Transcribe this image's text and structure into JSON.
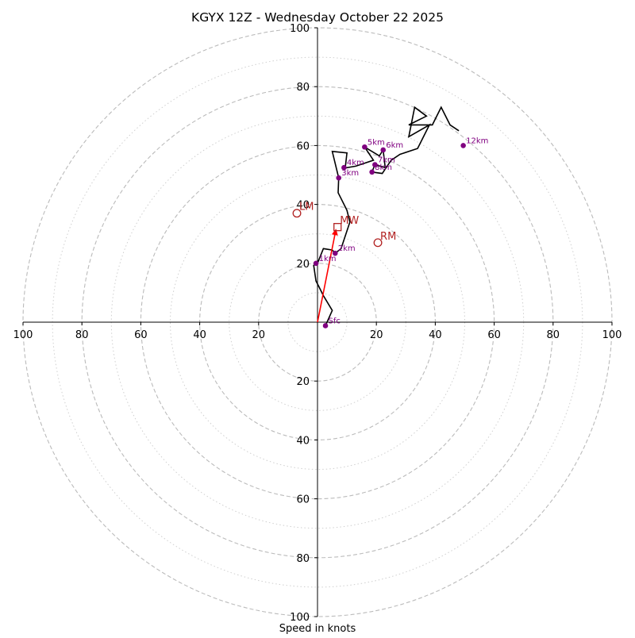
{
  "chart_data": {
    "type": "hodograph",
    "title": "KGYX 12Z - Wednesday October 22 2025",
    "xlabel": "Speed in knots",
    "range": [
      -100,
      100
    ],
    "rings": {
      "major": [
        20,
        40,
        60,
        80,
        100
      ],
      "minor": [
        10,
        30,
        50,
        70,
        90
      ]
    },
    "x_ticks": [
      {
        "value": -100,
        "label": "100"
      },
      {
        "value": -80,
        "label": "80"
      },
      {
        "value": -60,
        "label": "60"
      },
      {
        "value": -40,
        "label": "40"
      },
      {
        "value": -20,
        "label": "20"
      },
      {
        "value": 20,
        "label": "20"
      },
      {
        "value": 40,
        "label": "40"
      },
      {
        "value": 60,
        "label": "60"
      },
      {
        "value": 80,
        "label": "80"
      },
      {
        "value": 100,
        "label": "100"
      }
    ],
    "y_ticks": [
      {
        "value": 100,
        "label": "100"
      },
      {
        "value": 80,
        "label": "80"
      },
      {
        "value": 60,
        "label": "60"
      },
      {
        "value": 40,
        "label": "40"
      },
      {
        "value": 20,
        "label": "20"
      },
      {
        "value": -20,
        "label": "20"
      },
      {
        "value": -40,
        "label": "40"
      },
      {
        "value": -60,
        "label": "60"
      },
      {
        "value": -80,
        "label": "80"
      },
      {
        "value": -100,
        "label": "100"
      }
    ],
    "trace": [
      [
        2.7,
        -1.2
      ],
      [
        5,
        4
      ],
      [
        2,
        9
      ],
      [
        0.5,
        12
      ],
      [
        -0.5,
        14
      ],
      [
        -1.3,
        19.3
      ],
      [
        0,
        20
      ],
      [
        2,
        25
      ],
      [
        5,
        24.5
      ],
      [
        6,
        23.4
      ],
      [
        8,
        25
      ],
      [
        11,
        34
      ],
      [
        10,
        38
      ],
      [
        8,
        42
      ],
      [
        7,
        44
      ],
      [
        7.2,
        49
      ],
      [
        5,
        58
      ],
      [
        10,
        57.5
      ],
      [
        9.5,
        53
      ],
      [
        8.8,
        52.3
      ],
      [
        13,
        53
      ],
      [
        19,
        55
      ],
      [
        16,
        59.5
      ],
      [
        21,
        56.5
      ],
      [
        22.3,
        58.5
      ],
      [
        23,
        52.5
      ],
      [
        19.5,
        53.5
      ],
      [
        18.5,
        51
      ],
      [
        22,
        50.5
      ],
      [
        23,
        52
      ],
      [
        25,
        55
      ],
      [
        28,
        57
      ],
      [
        34,
        59
      ],
      [
        38,
        67
      ],
      [
        31,
        63
      ],
      [
        33,
        73
      ],
      [
        37,
        70
      ],
      [
        31,
        67
      ],
      [
        39,
        67
      ],
      [
        42,
        73
      ],
      [
        45,
        67
      ],
      [
        48,
        65
      ]
    ],
    "levels": [
      {
        "label": "Sfc",
        "u": 2.7,
        "v": -1.2
      },
      {
        "label": "1km",
        "u": -0.5,
        "v": 20
      },
      {
        "label": "2km",
        "u": 6,
        "v": 23.4
      },
      {
        "label": "3km",
        "u": 7.2,
        "v": 49
      },
      {
        "label": "4km",
        "u": 9,
        "v": 52.5
      },
      {
        "label": "5km",
        "u": 16,
        "v": 59.5
      },
      {
        "label": "6km",
        "u": 22.3,
        "v": 58.5
      },
      {
        "label": "7km",
        "u": 19.5,
        "v": 53.5
      },
      {
        "label": "8km",
        "u": 18.5,
        "v": 51
      },
      {
        "label": "12km",
        "u": 49.5,
        "v": 60
      }
    ],
    "storm_motions": [
      {
        "label": "LM",
        "u": -7,
        "v": 37,
        "marker": "circle"
      },
      {
        "label": "RM",
        "u": 20.5,
        "v": 27,
        "marker": "circle"
      },
      {
        "label": "MW",
        "u": 6.8,
        "v": 32.3,
        "marker": "square"
      }
    ],
    "shear_vector": {
      "from": [
        0,
        0
      ],
      "to": [
        6.2,
        31.2
      ]
    },
    "colors": {
      "trace": "#000000",
      "levels": "#800080",
      "storm_motion": "#b22222",
      "shear_arrow": "#ff0000",
      "grid": "#bbbbbb"
    }
  }
}
